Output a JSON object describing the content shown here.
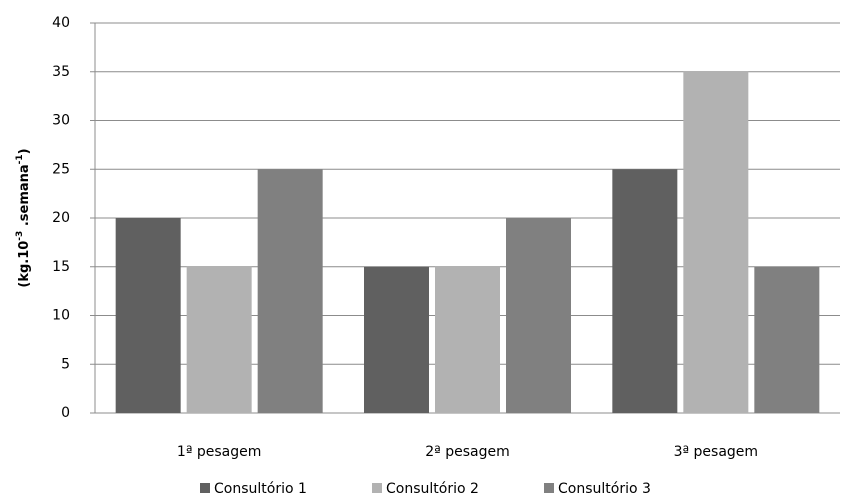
{
  "chart_data": {
    "type": "bar",
    "y_label": [
      "(kg.10",
      "-3",
      " .semana",
      "-1",
      ")"
    ],
    "categories": [
      "1ª pesagem",
      "2ª pesagem",
      "3ª pesagem"
    ],
    "series": [
      {
        "name": "Consultório 1",
        "color": "#606060",
        "values": [
          20,
          15,
          25
        ]
      },
      {
        "name": "Consultório 2",
        "color": "#b2b2b2",
        "values": [
          15,
          15,
          35
        ]
      },
      {
        "name": "Consultório 3",
        "color": "#808080",
        "values": [
          25,
          20,
          15
        ]
      }
    ],
    "ylim": [
      0,
      40
    ],
    "yticks": [
      0,
      5,
      10,
      15,
      20,
      25,
      30,
      35,
      40
    ],
    "grid": true,
    "legend": "bottom"
  }
}
